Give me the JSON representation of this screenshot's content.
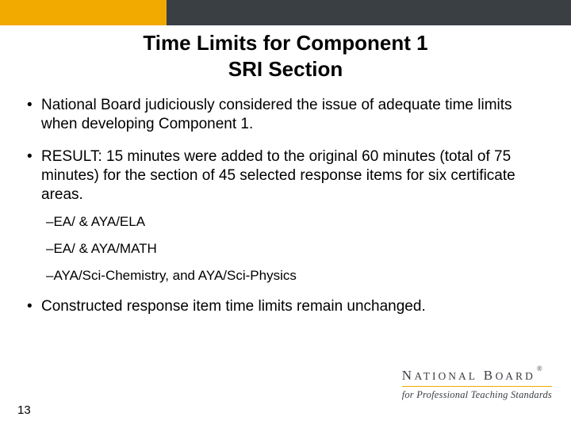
{
  "header": {
    "gold_color": "#f2a900",
    "dark_color": "#3a3f44"
  },
  "title": {
    "line1": "Time Limits for Component 1",
    "line2": "SRI Section"
  },
  "bullets": [
    {
      "text": "National Board judiciously considered the issue of adequate time limits when developing Component 1."
    },
    {
      "text": "RESULT: 15 minutes were added to the original 60 minutes (total of 75 minutes) for the section of 45 selected response items for six certificate areas.",
      "sub": [
        "–EA/ & AYA/ELA",
        "–EA/ & AYA/MATH",
        "–AYA/Sci-Chemistry, and AYA/Sci-Physics"
      ]
    },
    {
      "text": "Constructed response item time limits remain unchanged."
    }
  ],
  "page_number": "13",
  "logo": {
    "main_pre": "N",
    "main_word1_rest": "ATIONAL",
    "main_space": " ",
    "main_word2_first": "B",
    "main_word2_rest": "OARD",
    "reg": "®",
    "subtitle": "for Professional Teaching Standards"
  }
}
